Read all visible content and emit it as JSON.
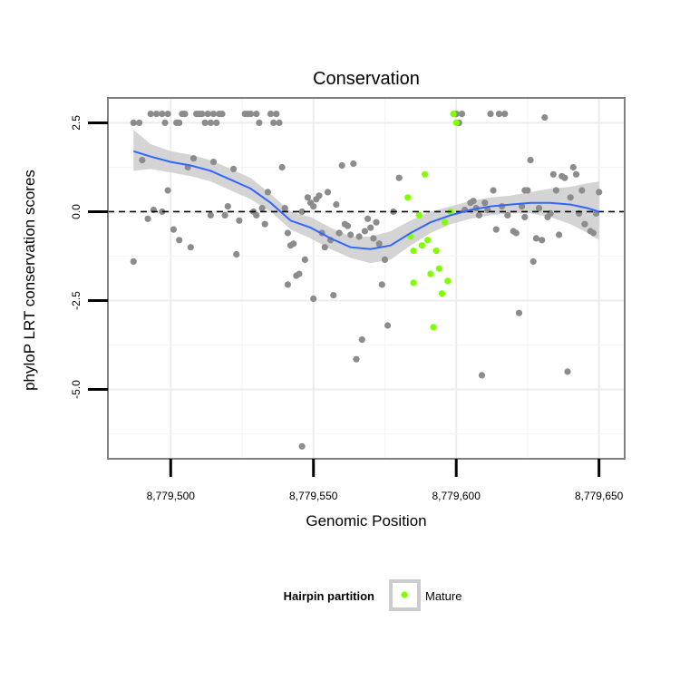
{
  "chart_data": {
    "type": "scatter",
    "title": "Conservation",
    "xlabel": "Genomic Position",
    "ylabel": "phyloP LRT conservation scores",
    "xlim": [
      8779478,
      8779659
    ],
    "ylim": [
      -6.95,
      3.2
    ],
    "x_ticks": [
      8779500,
      8779550,
      8779600,
      8779650
    ],
    "x_tick_labels": [
      "8,779,500",
      "8,779,550",
      "8,779,600",
      "8,779,650"
    ],
    "y_ticks": [
      2.5,
      0.0,
      -2.5,
      -5.0
    ],
    "y_tick_labels": [
      "2.5",
      "0.0",
      "-2.5",
      "-5.0"
    ],
    "reference_line_y": 0,
    "grid": true,
    "legend": {
      "title": "Hairpin partition",
      "position": "bottom",
      "entries": [
        {
          "label": "Mature",
          "color": "#80ff00"
        }
      ]
    },
    "colors": {
      "other": "#8c8c8c",
      "mature": "#80ff00",
      "smooth_line": "#3366ff",
      "ribbon": "#cccccc"
    },
    "series": [
      {
        "group": "other",
        "points": [
          [
            8779487,
            2.5
          ],
          [
            8779489,
            2.5
          ],
          [
            8779487,
            -1.4
          ],
          [
            8779490,
            1.45
          ],
          [
            8779492,
            -0.2
          ],
          [
            8779493,
            2.75
          ],
          [
            8779495,
            2.75
          ],
          [
            8779494,
            0.05
          ],
          [
            8779497,
            2.75
          ],
          [
            8779498,
            2.5
          ],
          [
            8779499,
            2.75
          ],
          [
            8779497,
            0.0
          ],
          [
            8779499,
            0.6
          ],
          [
            8779502,
            2.5
          ],
          [
            8779503,
            2.5
          ],
          [
            8779501,
            -0.5
          ],
          [
            8779503,
            -0.8
          ],
          [
            8779504,
            2.75
          ],
          [
            8779505,
            2.75
          ],
          [
            8779506,
            1.25
          ],
          [
            8779508,
            1.5
          ],
          [
            8779509,
            2.75
          ],
          [
            8779507,
            -1.0
          ],
          [
            8779510,
            2.75
          ],
          [
            8779511,
            2.75
          ],
          [
            8779512,
            2.5
          ],
          [
            8779513,
            2.75
          ],
          [
            8779514,
            2.5
          ],
          [
            8779515,
            2.75
          ],
          [
            8779516,
            2.5
          ],
          [
            8779517,
            2.75
          ],
          [
            8779518,
            2.75
          ],
          [
            8779515,
            1.4
          ],
          [
            8779514,
            -0.1
          ],
          [
            8779519,
            -0.1
          ],
          [
            8779520,
            0.15
          ],
          [
            8779522,
            1.2
          ],
          [
            8779523,
            -1.2
          ],
          [
            8779524,
            -0.25
          ],
          [
            8779526,
            2.75
          ],
          [
            8779527,
            2.75
          ],
          [
            8779528,
            2.75
          ],
          [
            8779530,
            2.75
          ],
          [
            8779531,
            2.5
          ],
          [
            8779529,
            0.0
          ],
          [
            8779530,
            -0.1
          ],
          [
            8779532,
            0.1
          ],
          [
            8779533,
            -0.35
          ],
          [
            8779534,
            0.55
          ],
          [
            8779535,
            2.75
          ],
          [
            8779536,
            2.5
          ],
          [
            8779537,
            2.75
          ],
          [
            8779538,
            2.5
          ],
          [
            8779539,
            1.25
          ],
          [
            8779540,
            0.1
          ],
          [
            8779541,
            -0.6
          ],
          [
            8779542,
            -0.95
          ],
          [
            8779541,
            -2.05
          ],
          [
            8779543,
            -0.9
          ],
          [
            8779544,
            -1.8
          ],
          [
            8779545,
            -1.75
          ],
          [
            8779546,
            0.0
          ],
          [
            8779547,
            -1.35
          ],
          [
            8779546,
            -6.6
          ],
          [
            8779548,
            0.4
          ],
          [
            8779549,
            0.25
          ],
          [
            8779550,
            0.15
          ],
          [
            8779551,
            0.35
          ],
          [
            8779552,
            0.45
          ],
          [
            8779550,
            -2.45
          ],
          [
            8779553,
            -0.6
          ],
          [
            8779554,
            -1.0
          ],
          [
            8779555,
            0.55
          ],
          [
            8779556,
            -0.8
          ],
          [
            8779557,
            -2.35
          ],
          [
            8779558,
            0.2
          ],
          [
            8779559,
            -0.6
          ],
          [
            8779560,
            1.3
          ],
          [
            8779561,
            -0.35
          ],
          [
            8779562,
            -0.4
          ],
          [
            8779563,
            -0.65
          ],
          [
            8779564,
            1.35
          ],
          [
            8779565,
            -4.15
          ],
          [
            8779566,
            -0.7
          ],
          [
            8779567,
            -3.6
          ],
          [
            8779568,
            -0.55
          ],
          [
            8779569,
            -0.2
          ],
          [
            8779570,
            -0.45
          ],
          [
            8779571,
            -0.75
          ],
          [
            8779572,
            -0.3
          ],
          [
            8779573,
            -0.9
          ],
          [
            8779574,
            -2.05
          ],
          [
            8779575,
            -1.35
          ],
          [
            8779576,
            -3.2
          ],
          [
            8779578,
            0.0
          ],
          [
            8779580,
            0.95
          ],
          [
            8779600,
            2.75
          ],
          [
            8779601,
            2.5
          ],
          [
            8779602,
            2.75
          ],
          [
            8779603,
            0.05
          ],
          [
            8779605,
            0.25
          ],
          [
            8779606,
            0.3
          ],
          [
            8779607,
            0.1
          ],
          [
            8779608,
            -0.1
          ],
          [
            8779609,
            -4.6
          ],
          [
            8779610,
            0.25
          ],
          [
            8779611,
            0.05
          ],
          [
            8779612,
            2.75
          ],
          [
            8779613,
            0.6
          ],
          [
            8779614,
            -0.5
          ],
          [
            8779615,
            2.75
          ],
          [
            8779616,
            0.15
          ],
          [
            8779617,
            2.75
          ],
          [
            8779618,
            -0.1
          ],
          [
            8779620,
            -0.55
          ],
          [
            8779621,
            -0.6
          ],
          [
            8779622,
            -2.85
          ],
          [
            8779623,
            0.15
          ],
          [
            8779624,
            0.6
          ],
          [
            8779624,
            -0.15
          ],
          [
            8779625,
            0.6
          ],
          [
            8779626,
            1.45
          ],
          [
            8779627,
            -1.4
          ],
          [
            8779628,
            -0.75
          ],
          [
            8779629,
            0.1
          ],
          [
            8779630,
            -0.8
          ],
          [
            8779631,
            2.65
          ],
          [
            8779632,
            -0.15
          ],
          [
            8779633,
            -0.05
          ],
          [
            8779634,
            1.05
          ],
          [
            8779635,
            0.6
          ],
          [
            8779636,
            -0.65
          ],
          [
            8779637,
            1.0
          ],
          [
            8779638,
            0.95
          ],
          [
            8779639,
            -4.5
          ],
          [
            8779640,
            0.4
          ],
          [
            8779641,
            1.25
          ],
          [
            8779642,
            1.05
          ],
          [
            8779643,
            -0.05
          ],
          [
            8779644,
            0.6
          ],
          [
            8779645,
            -0.35
          ],
          [
            8779647,
            -0.55
          ],
          [
            8779648,
            -0.6
          ],
          [
            8779649,
            -0.05
          ],
          [
            8779650,
            0.55
          ]
        ]
      },
      {
        "group": "mature",
        "name": "Mature",
        "points": [
          [
            8779583,
            0.4
          ],
          [
            8779584,
            -0.7
          ],
          [
            8779585,
            -2.0
          ],
          [
            8779585,
            -1.1
          ],
          [
            8779587,
            -0.1
          ],
          [
            8779588,
            -0.95
          ],
          [
            8779589,
            1.05
          ],
          [
            8779590,
            -0.8
          ],
          [
            8779591,
            -1.75
          ],
          [
            8779592,
            -3.25
          ],
          [
            8779593,
            -1.1
          ],
          [
            8779594,
            -1.6
          ],
          [
            8779595,
            -2.3
          ],
          [
            8779596,
            -0.3
          ],
          [
            8779597,
            -1.95
          ],
          [
            8779598,
            0.0
          ],
          [
            8779599,
            2.75
          ],
          [
            8779600,
            2.5
          ]
        ]
      }
    ],
    "smooth_line": {
      "x": [
        8779487,
        8779493,
        8779500,
        8779507,
        8779514,
        8779521,
        8779528,
        8779535,
        8779542,
        8779549,
        8779556,
        8779563,
        8779570,
        8779577,
        8779584,
        8779591,
        8779598,
        8779605,
        8779612,
        8779619,
        8779626,
        8779633,
        8779640,
        8779646,
        8779650
      ],
      "y": [
        1.7,
        1.55,
        1.4,
        1.3,
        1.15,
        0.9,
        0.65,
        0.25,
        -0.25,
        -0.45,
        -0.75,
        -1.0,
        -1.05,
        -0.95,
        -0.6,
        -0.3,
        -0.1,
        0.05,
        0.15,
        0.2,
        0.25,
        0.25,
        0.2,
        0.1,
        0.0
      ]
    },
    "ribbon": {
      "x": [
        8779487,
        8779493,
        8779500,
        8779507,
        8779514,
        8779521,
        8779528,
        8779535,
        8779542,
        8779549,
        8779556,
        8779563,
        8779570,
        8779577,
        8779584,
        8779591,
        8779598,
        8779605,
        8779612,
        8779619,
        8779626,
        8779633,
        8779640,
        8779646,
        8779650
      ],
      "lower": [
        1.15,
        1.2,
        1.1,
        1.0,
        0.85,
        0.6,
        0.35,
        0.0,
        -0.5,
        -0.75,
        -1.05,
        -1.3,
        -1.45,
        -1.35,
        -0.95,
        -0.6,
        -0.35,
        -0.2,
        -0.1,
        -0.05,
        -0.05,
        -0.15,
        -0.35,
        -0.6,
        -0.8
      ],
      "upper": [
        2.3,
        1.9,
        1.7,
        1.6,
        1.45,
        1.2,
        0.95,
        0.5,
        0.0,
        -0.15,
        -0.45,
        -0.7,
        -0.7,
        -0.55,
        -0.25,
        0.0,
        0.15,
        0.3,
        0.4,
        0.45,
        0.55,
        0.65,
        0.7,
        0.8,
        0.85
      ]
    }
  }
}
